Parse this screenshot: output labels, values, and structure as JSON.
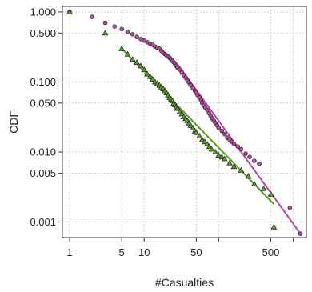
{
  "chart_data": {
    "type": "scatter",
    "title": "",
    "xlabel": "#Casualties",
    "ylabel": "CDF",
    "x_scale": "log",
    "y_scale": "log",
    "xlim": [
      0.8,
      1500
    ],
    "ylim": [
      0.0006,
      1.2
    ],
    "grid": true,
    "legend": "none",
    "x_ticks": [
      1,
      5,
      10,
      50,
      500
    ],
    "x_tick_labels": [
      "1",
      "5",
      "10",
      "50",
      "500"
    ],
    "x_minor_grid": [
      100,
      1000
    ],
    "y_ticks": [
      1.0,
      0.5,
      0.1,
      0.05,
      0.01,
      0.005,
      0.001
    ],
    "y_tick_labels": [
      "1.000",
      "0.500",
      "0.100",
      "0.050",
      "0.010",
      "0.005",
      "0.001"
    ],
    "colors": {
      "circle_fit": "#b44aa0",
      "triangle_fit": "#5a9a2a",
      "marker_edge": "#222222"
    },
    "series": [
      {
        "marker": "circle",
        "color": "#b44aa0",
        "points": [
          [
            1,
            1.0
          ],
          [
            2,
            0.85
          ],
          [
            3,
            0.7
          ],
          [
            4,
            0.62
          ],
          [
            5,
            0.57
          ],
          [
            6,
            0.52
          ],
          [
            7,
            0.48
          ],
          [
            8,
            0.44
          ],
          [
            9,
            0.41
          ],
          [
            10,
            0.39
          ],
          [
            11,
            0.37
          ],
          [
            12,
            0.35
          ],
          [
            13,
            0.34
          ],
          [
            14,
            0.32
          ],
          [
            15,
            0.31
          ],
          [
            16,
            0.3
          ],
          [
            17,
            0.28
          ],
          [
            18,
            0.26
          ],
          [
            19,
            0.25
          ],
          [
            20,
            0.24
          ],
          [
            21,
            0.23
          ],
          [
            22,
            0.22
          ],
          [
            23,
            0.21
          ],
          [
            24,
            0.2
          ],
          [
            25,
            0.19
          ],
          [
            26,
            0.18
          ],
          [
            27,
            0.17
          ],
          [
            28,
            0.16
          ],
          [
            30,
            0.15
          ],
          [
            32,
            0.135
          ],
          [
            34,
            0.125
          ],
          [
            36,
            0.115
          ],
          [
            38,
            0.105
          ],
          [
            40,
            0.098
          ],
          [
            42,
            0.09
          ],
          [
            45,
            0.082
          ],
          [
            48,
            0.075
          ],
          [
            50,
            0.07
          ],
          [
            52,
            0.065
          ],
          [
            55,
            0.06
          ],
          [
            58,
            0.055
          ],
          [
            60,
            0.05
          ],
          [
            63,
            0.046
          ],
          [
            66,
            0.043
          ],
          [
            70,
            0.04
          ],
          [
            74,
            0.036
          ],
          [
            78,
            0.033
          ],
          [
            82,
            0.03
          ],
          [
            86,
            0.028
          ],
          [
            90,
            0.026
          ],
          [
            95,
            0.024
          ],
          [
            100,
            0.022
          ],
          [
            110,
            0.02
          ],
          [
            120,
            0.018
          ],
          [
            130,
            0.016
          ],
          [
            140,
            0.015
          ],
          [
            150,
            0.014
          ],
          [
            160,
            0.013
          ],
          [
            180,
            0.012
          ],
          [
            200,
            0.011
          ],
          [
            230,
            0.0095
          ],
          [
            260,
            0.0085
          ],
          [
            300,
            0.0075
          ],
          [
            350,
            0.0068
          ],
          [
            900,
            0.0016
          ],
          [
            1250,
            0.00068
          ]
        ],
        "fit": {
          "x": [
            28,
            1250
          ],
          "y": [
            0.18,
            0.00068
          ]
        }
      },
      {
        "marker": "triangle",
        "color": "#5a9a2a",
        "points": [
          [
            1,
            1.0
          ],
          [
            3,
            0.5
          ],
          [
            5,
            0.3
          ],
          [
            6,
            0.25
          ],
          [
            7,
            0.21
          ],
          [
            8,
            0.19
          ],
          [
            9,
            0.17
          ],
          [
            10,
            0.15
          ],
          [
            11,
            0.13
          ],
          [
            12,
            0.12
          ],
          [
            13,
            0.11
          ],
          [
            14,
            0.1
          ],
          [
            15,
            0.095
          ],
          [
            16,
            0.09
          ],
          [
            17,
            0.085
          ],
          [
            18,
            0.08
          ],
          [
            19,
            0.075
          ],
          [
            20,
            0.07
          ],
          [
            21,
            0.065
          ],
          [
            22,
            0.06
          ],
          [
            23,
            0.057
          ],
          [
            24,
            0.054
          ],
          [
            25,
            0.05
          ],
          [
            26,
            0.047
          ],
          [
            27,
            0.044
          ],
          [
            28,
            0.042
          ],
          [
            30,
            0.038
          ],
          [
            32,
            0.035
          ],
          [
            34,
            0.032
          ],
          [
            36,
            0.03
          ],
          [
            38,
            0.028
          ],
          [
            40,
            0.026
          ],
          [
            42,
            0.024
          ],
          [
            45,
            0.022
          ],
          [
            48,
            0.02
          ],
          [
            50,
            0.019
          ],
          [
            55,
            0.017
          ],
          [
            60,
            0.015
          ],
          [
            65,
            0.014
          ],
          [
            70,
            0.013
          ],
          [
            75,
            0.012
          ],
          [
            80,
            0.011
          ],
          [
            90,
            0.01
          ],
          [
            100,
            0.009
          ],
          [
            110,
            0.0085
          ],
          [
            120,
            0.008
          ],
          [
            140,
            0.007
          ],
          [
            160,
            0.0062
          ],
          [
            200,
            0.0055
          ],
          [
            250,
            0.0045
          ],
          [
            300,
            0.0035
          ],
          [
            400,
            0.003
          ],
          [
            500,
            0.0025
          ],
          [
            550,
            0.00085
          ]
        ],
        "fit": {
          "x": [
            5,
            550
          ],
          "y": [
            0.3,
            0.0018
          ]
        }
      }
    ]
  }
}
